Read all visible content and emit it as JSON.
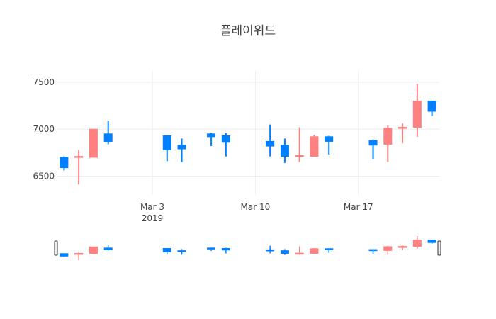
{
  "chart_data": {
    "type": "candlestick",
    "title": "플레이위드",
    "x": [
      "2019-02-25",
      "2019-02-26",
      "2019-02-27",
      "2019-02-28",
      "2019-03-04",
      "2019-03-05",
      "2019-03-07",
      "2019-03-08",
      "2019-03-11",
      "2019-03-12",
      "2019-03-13",
      "2019-03-14",
      "2019-03-15",
      "2019-03-18",
      "2019-03-19",
      "2019-03-20",
      "2019-03-21",
      "2019-03-22"
    ],
    "open": [
      6700,
      6700,
      6700,
      6950,
      6930,
      6830,
      6950,
      6930,
      6870,
      6830,
      6710,
      6710,
      6920,
      6880,
      6840,
      7010,
      7020,
      7300
    ],
    "high": [
      6710,
      6780,
      7000,
      7090,
      6930,
      6900,
      6960,
      6960,
      7050,
      6900,
      7020,
      6940,
      6930,
      6890,
      7040,
      7060,
      7480,
      7300
    ],
    "low": [
      6560,
      6410,
      6700,
      6840,
      6660,
      6650,
      6820,
      6710,
      6710,
      6640,
      6650,
      6710,
      6730,
      6680,
      6650,
      6850,
      6920,
      7140
    ],
    "close": [
      6590,
      6710,
      7000,
      6870,
      6780,
      6790,
      6920,
      6860,
      6820,
      6710,
      6720,
      6920,
      6870,
      6830,
      7010,
      7020,
      7300,
      7190
    ],
    "increasing_color": "#FF8080",
    "decreasing_color": "#0080FF",
    "ylim": [
      6300,
      7620
    ],
    "y_ticks": [
      "6500",
      "7000",
      "7500"
    ],
    "x_ticks": [
      {
        "date": "2019-03-03",
        "label": "Mar 3",
        "sublabel": "2019"
      },
      {
        "date": "2019-03-10",
        "label": "Mar 10",
        "sublabel": ""
      },
      {
        "date": "2019-03-17",
        "label": "Mar 17",
        "sublabel": ""
      }
    ],
    "xlim": [
      "2019-02-24T12:00:00",
      "2019-03-22T12:00:00"
    ],
    "grid": true,
    "range_slider": true
  }
}
